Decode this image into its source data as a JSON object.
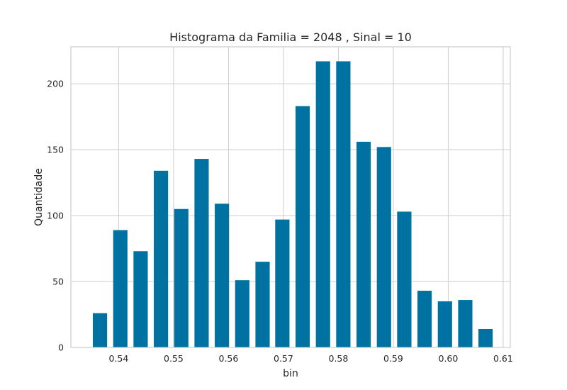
{
  "chart_data": {
    "type": "bar",
    "title": "Histograma da Familia = 2048 , Sinal = 10",
    "xlabel": "bin",
    "ylabel": "Quantidade",
    "x": [
      0.5366,
      0.5403,
      0.544,
      0.5477,
      0.5514,
      0.5551,
      0.5588,
      0.5625,
      0.5662,
      0.5698,
      0.5735,
      0.5772,
      0.5809,
      0.5846,
      0.5883,
      0.592,
      0.5957,
      0.5994,
      0.6031,
      0.6068
    ],
    "values": [
      26,
      89,
      73,
      134,
      105,
      143,
      109,
      51,
      65,
      97,
      183,
      217,
      217,
      156,
      152,
      103,
      43,
      35,
      36,
      14
    ],
    "bar_width": 0.0026,
    "xlim": [
      0.5313,
      0.6113
    ],
    "ylim": [
      0,
      228
    ],
    "xticks": [
      0.54,
      0.55,
      0.56,
      0.57,
      0.58,
      0.59,
      0.6,
      0.61
    ],
    "xtick_labels": [
      "0.54",
      "0.55",
      "0.56",
      "0.57",
      "0.58",
      "0.59",
      "0.60",
      "0.61"
    ],
    "yticks": [
      0,
      50,
      100,
      150,
      200
    ],
    "ytick_labels": [
      "0",
      "50",
      "100",
      "150",
      "200"
    ],
    "grid": true,
    "legend": "none",
    "colors": {
      "bar": "#0072a2",
      "grid": "#cccccc",
      "spine": "#cccccc",
      "text": "#262626"
    }
  }
}
